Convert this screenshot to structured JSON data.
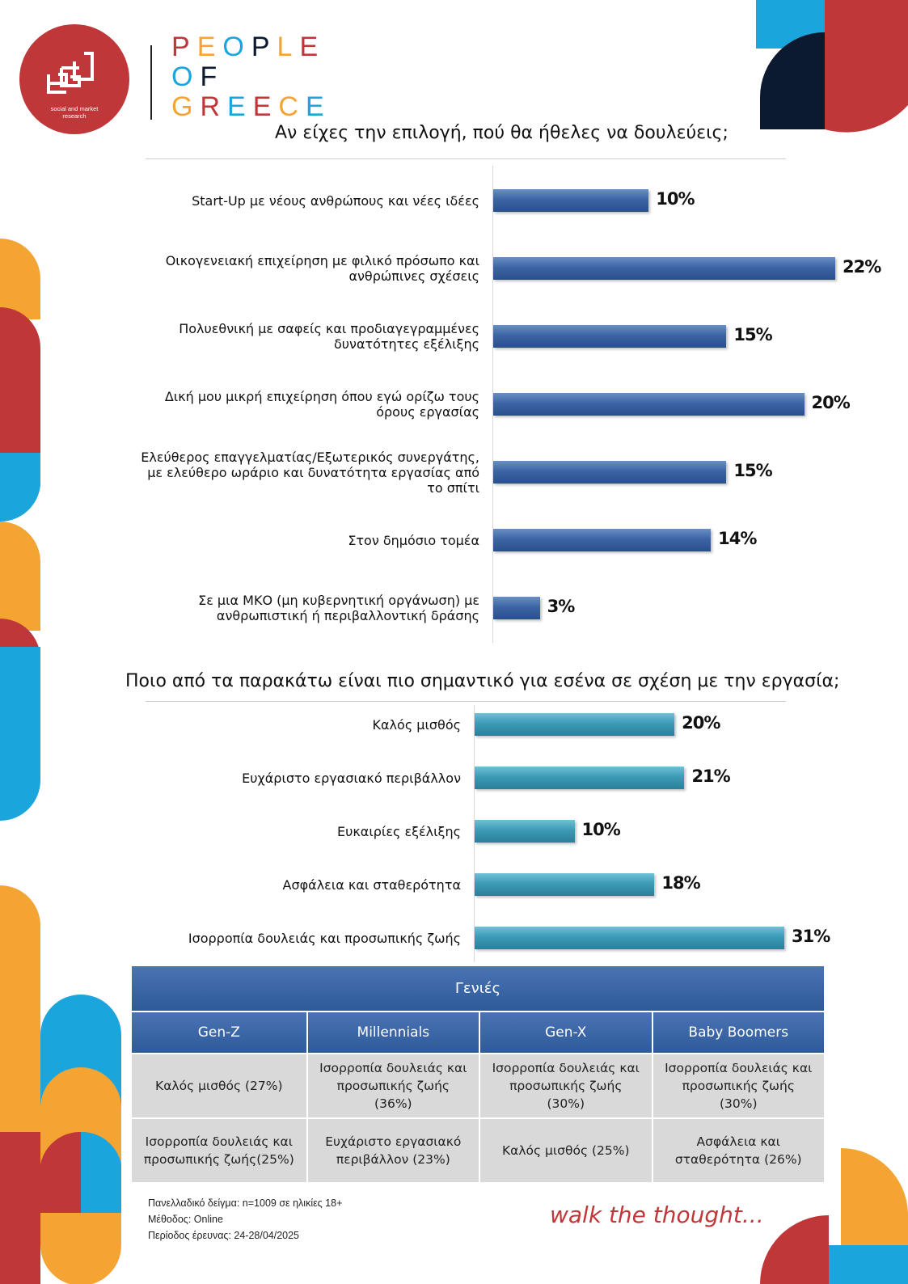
{
  "logo": {
    "caption_line1": "social and market",
    "caption_line2": "research"
  },
  "brand": {
    "line1": "PEOPLE",
    "line2": "OF",
    "line3": "GREECE"
  },
  "colors": {
    "red": "#c0373a",
    "orange": "#f4a433",
    "blue": "#1aa5dc",
    "navy": "#0b1a2e",
    "bar1": "#3d64a6",
    "bar2": "#3c9bb7"
  },
  "chart_data": [
    {
      "type": "bar",
      "orientation": "horizontal",
      "title": "Αν είχες την επιλογή, πού θα ήθελες να δουλεύεις;",
      "categories": [
        [
          "Start-Up με νέους ανθρώπους και νέες ιδέες"
        ],
        [
          "Οικογενειακή επιχείρηση με φιλικό πρόσωπο και",
          "ανθρώπινες σχέσεις"
        ],
        [
          "Πολυεθνική με σαφείς και προδιαγεγραμμένες",
          "δυνατότητες εξέλιξης"
        ],
        [
          "Δική μου μικρή επιχείρηση όπου εγώ ορίζω τους",
          "όρους εργασίας"
        ],
        [
          "Ελεύθερος επαγγελματίας/Εξωτερικός συνεργάτης,",
          "με ελεύθερο ωράριο και δυνατότητα εργασίας από",
          "το σπίτι"
        ],
        [
          "Στον δημόσιο τομέα"
        ],
        [
          "Σε μια ΜΚΟ (μη κυβερνητική οργάνωση) με",
          "ανθρωπιστική ή περιβαλλοντική δράσης"
        ]
      ],
      "values": [
        10,
        22,
        15,
        20,
        15,
        14,
        3
      ],
      "value_labels": [
        "10%",
        "22%",
        "15%",
        "20%",
        "15%",
        "14%",
        "3%"
      ],
      "xlim": [
        0,
        22
      ]
    },
    {
      "type": "bar",
      "orientation": "horizontal",
      "title": "Ποιο από τα παρακάτω είναι πιο σημαντικό για εσένα σε σχέση με την εργασία;",
      "categories": [
        [
          "Καλός μισθός"
        ],
        [
          "Ευχάριστο εργασιακό περιβάλλον"
        ],
        [
          "Ευκαιρίες εξέλιξης"
        ],
        [
          "Ασφάλεια και σταθερότητα"
        ],
        [
          "Ισορροπία δουλειάς και προσωπικής ζωής"
        ]
      ],
      "values": [
        20,
        21,
        10,
        18,
        31
      ],
      "value_labels": [
        "20%",
        "21%",
        "10%",
        "18%",
        "31%"
      ],
      "xlim": [
        0,
        31
      ]
    }
  ],
  "table": {
    "title": "Γενιές",
    "headers": [
      "Gen-Z",
      "Millennials",
      "Gen-X",
      "Baby Boomers"
    ],
    "rows": [
      [
        [
          "Καλός μισθός (27%)"
        ],
        [
          "Ισορροπία δουλειάς και",
          "προσωπικής ζωής",
          "(36%)"
        ],
        [
          "Ισορροπία δουλειάς και",
          "προσωπικής ζωής",
          "(30%)"
        ],
        [
          "Ισορροπία δουλειάς και",
          "προσωπικής ζωής",
          "(30%)"
        ]
      ],
      [
        [
          "Ισορροπία δουλειάς και",
          "προσωπικής ζωής(25%)"
        ],
        [
          "Ευχάριστο εργασιακό",
          "περιβάλλον (23%)"
        ],
        [
          "Καλός μισθός (25%)"
        ],
        [
          "Ασφάλεια και",
          "σταθερότητα (26%)"
        ]
      ]
    ]
  },
  "footnotes": [
    "Πανελλαδικό δείγμα: n=1009 σε ηλικίες 18+",
    "Μέθοδος: Online",
    "Περίοδος έρευνας: 24-28/04/2025"
  ],
  "tagline": "walk the thought..."
}
